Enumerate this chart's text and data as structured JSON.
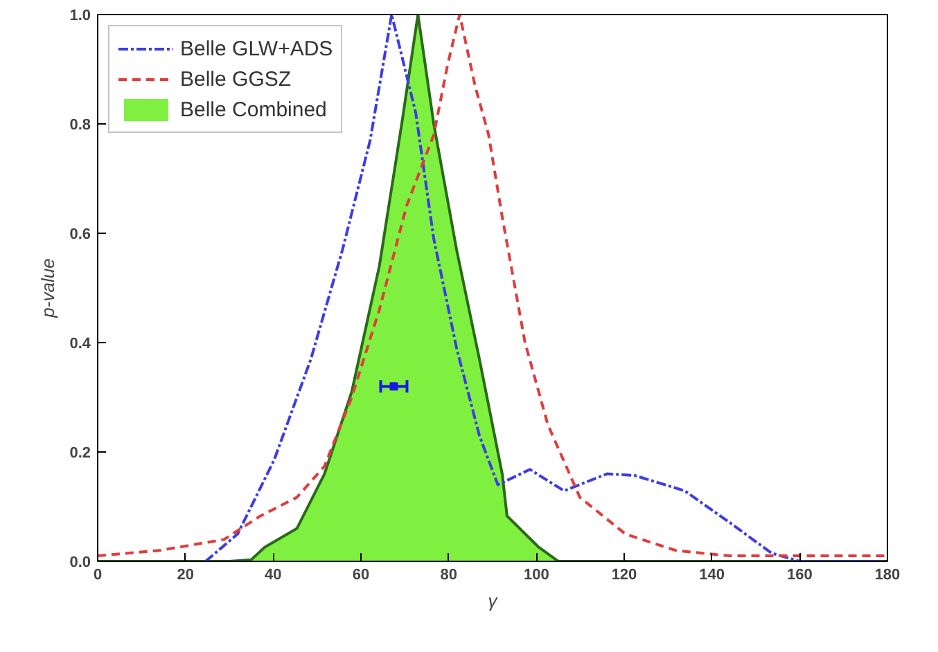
{
  "chart_data": {
    "type": "line",
    "xlabel": "γ",
    "ylabel": "p-value",
    "xlim": [
      0,
      180
    ],
    "ylim": [
      0,
      1
    ],
    "xticks": [
      0,
      20,
      40,
      60,
      80,
      100,
      120,
      140,
      160,
      180
    ],
    "yticks": [
      {
        "value": 0,
        "label": "0.0"
      },
      {
        "value": 0.2,
        "label": "0.2"
      },
      {
        "value": 0.4,
        "label": "0.4"
      },
      {
        "value": 0.6,
        "label": "0.6"
      },
      {
        "value": 0.8,
        "label": "0.8"
      },
      {
        "value": 1,
        "label": "1.0"
      }
    ],
    "grid": false,
    "legend": "top",
    "series": [
      {
        "name": "Belle GLW+ADS",
        "line_style": "dashdot",
        "color": "#3c3ce6",
        "x": [
          24.6,
          31.9,
          40.2,
          48.6,
          55.8,
          62.1,
          67,
          72.5,
          76.6,
          81.8,
          87,
          91.2,
          98.5,
          106.3,
          116.1,
          122.4,
          133.8,
          144.2,
          153.6,
          160,
          180
        ],
        "values": [
          0,
          0.05,
          0.185,
          0.37,
          0.57,
          0.77,
          1.0,
          0.82,
          0.59,
          0.39,
          0.23,
          0.14,
          0.168,
          0.129,
          0.16,
          0.157,
          0.129,
          0.07,
          0.015,
          0,
          0
        ]
      },
      {
        "name": "Belle GGSZ",
        "line_style": "dashed",
        "color": "#e03c3c",
        "x": [
          0,
          14.2,
          28.8,
          37.1,
          45.4,
          51.7,
          57.9,
          64.2,
          70.4,
          76.6,
          79.8,
          82.5,
          86,
          89.1,
          92.2,
          97.4,
          102.6,
          109.9,
          120.3,
          131.7,
          144,
          180
        ],
        "values": [
          0.01,
          0.02,
          0.04,
          0.083,
          0.117,
          0.174,
          0.3,
          0.46,
          0.65,
          0.78,
          0.91,
          1.0,
          0.87,
          0.78,
          0.63,
          0.4,
          0.25,
          0.117,
          0.05,
          0.02,
          0.01,
          0.01
        ]
      },
      {
        "name": "Belle Combined",
        "type": "area",
        "color": "#80f040",
        "x": [
          0,
          30,
          35,
          38.1,
          45.4,
          51.7,
          57.9,
          64.2,
          69.3,
          73,
          76.6,
          81.8,
          87,
          92.2,
          93.3,
          100.5,
          105,
          180
        ],
        "values": [
          0,
          0,
          0.003,
          0.026,
          0.06,
          0.16,
          0.31,
          0.54,
          0.8,
          1.0,
          0.8,
          0.57,
          0.37,
          0.16,
          0.083,
          0.026,
          0,
          0
        ]
      },
      {
        "type": "scatter",
        "marker": "square",
        "color": "#1a1ae0",
        "x": [
          67.5
        ],
        "values": [
          0.32
        ],
        "xerrors": [
          [
            64.5,
            70.5
          ]
        ]
      }
    ]
  }
}
